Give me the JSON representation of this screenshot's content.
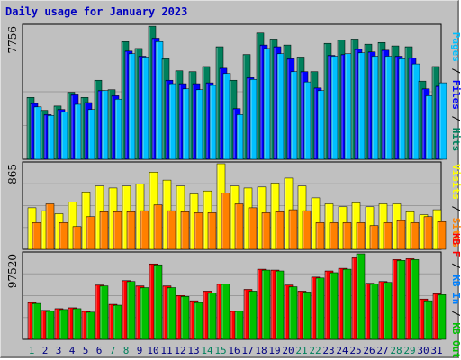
{
  "title": "Daily usage for January 2023",
  "chart_data": [
    {
      "type": "bar",
      "name": "pages-files-hits",
      "max_label": "7756",
      "ylim": [
        0,
        7756
      ],
      "grid": true,
      "legend_parts": [
        "Pages",
        " / ",
        "Files",
        " / ",
        "Hits"
      ],
      "legend_colors": [
        "#00c0ff",
        "#000000",
        "#0000ff",
        "#000000",
        "#00805c"
      ],
      "categories": [
        "1",
        "2",
        "3",
        "4",
        "5",
        "6",
        "7",
        "8",
        "9",
        "10",
        "11",
        "12",
        "13",
        "14",
        "15",
        "16",
        "17",
        "18",
        "19",
        "20",
        "21",
        "22",
        "23",
        "24",
        "25",
        "26",
        "27",
        "28",
        "29",
        "30",
        "31"
      ],
      "series": [
        {
          "name": "Hits",
          "color": "#00805c",
          "values": [
            3600,
            2850,
            3100,
            3900,
            3600,
            4600,
            4050,
            6850,
            6450,
            7750,
            5850,
            5150,
            5100,
            5400,
            6550,
            4600,
            6100,
            7350,
            7000,
            6650,
            5950,
            5100,
            6750,
            6950,
            7000,
            6700,
            6800,
            6600,
            6550,
            4550,
            5400
          ]
        },
        {
          "name": "Files",
          "color": "#0000ff",
          "values": [
            3250,
            2600,
            2900,
            3750,
            3300,
            4000,
            3700,
            6300,
            6000,
            7050,
            4600,
            4400,
            4400,
            4450,
            5300,
            2950,
            4750,
            6650,
            6550,
            5850,
            5100,
            4150,
            6050,
            6100,
            6400,
            6250,
            6350,
            6000,
            5900,
            4100,
            4250
          ]
        },
        {
          "name": "Pages",
          "color": "#00c0ff",
          "values": [
            3050,
            2550,
            2750,
            3200,
            2900,
            4000,
            3500,
            6150,
            5950,
            6850,
            4400,
            4100,
            4050,
            4300,
            5000,
            2600,
            4650,
            6450,
            6150,
            5100,
            4500,
            4000,
            6000,
            6150,
            6200,
            6000,
            6000,
            5850,
            5550,
            3700,
            4450
          ]
        }
      ]
    },
    {
      "type": "bar",
      "name": "visits-sites",
      "max_label": "865",
      "ylim": [
        0,
        865
      ],
      "grid": true,
      "legend_parts": [
        "Visits",
        " / ",
        "Sites"
      ],
      "legend_colors": [
        "#ffff00",
        "#000000",
        "#ff8000"
      ],
      "categories": [
        "1",
        "2",
        "3",
        "4",
        "5",
        "6",
        "7",
        "8",
        "9",
        "10",
        "11",
        "12",
        "13",
        "14",
        "15",
        "16",
        "17",
        "18",
        "19",
        "20",
        "21",
        "22",
        "23",
        "24",
        "25",
        "26",
        "27",
        "28",
        "29",
        "30",
        "31"
      ],
      "series": [
        {
          "name": "Visits",
          "color": "#ffff00",
          "values": [
            420,
            390,
            360,
            480,
            580,
            640,
            620,
            640,
            660,
            780,
            700,
            640,
            560,
            590,
            865,
            640,
            620,
            630,
            670,
            720,
            640,
            520,
            460,
            430,
            470,
            430,
            460,
            460,
            380,
            350,
            400
          ]
        },
        {
          "name": "Sites",
          "color": "#ff8000",
          "values": [
            270,
            460,
            270,
            230,
            330,
            380,
            380,
            380,
            390,
            450,
            390,
            380,
            370,
            370,
            570,
            460,
            420,
            370,
            380,
            400,
            390,
            270,
            270,
            270,
            270,
            240,
            270,
            290,
            270,
            330,
            280
          ]
        }
      ]
    },
    {
      "type": "bar",
      "name": "kbytes",
      "max_label": "97520",
      "ylim": [
        0,
        97520
      ],
      "grid": true,
      "legend_parts": [
        "KB F",
        " / ",
        "KB In",
        " / ",
        "KB Out"
      ],
      "legend_colors": [
        "#ff0000",
        "#000000",
        "#0080ff",
        "#000000",
        "#00c000"
      ],
      "categories": [
        "1",
        "2",
        "3",
        "4",
        "5",
        "6",
        "7",
        "8",
        "9",
        "10",
        "11",
        "12",
        "13",
        "14",
        "15",
        "16",
        "17",
        "18",
        "19",
        "20",
        "21",
        "22",
        "23",
        "24",
        "25",
        "26",
        "27",
        "28",
        "29",
        "30",
        "31"
      ],
      "series": [
        {
          "name": "KB F",
          "color": "#ff0000",
          "values": [
            42000,
            33000,
            35000,
            36000,
            32000,
            62000,
            40000,
            67000,
            61000,
            86000,
            61000,
            50000,
            44000,
            55000,
            63000,
            32000,
            57000,
            80000,
            79000,
            62000,
            55000,
            71000,
            78000,
            81000,
            93000,
            64000,
            66000,
            91000,
            92000,
            46000,
            52000
          ]
        },
        {
          "name": "KB Out",
          "color": "#00c000",
          "values": [
            41000,
            32000,
            34000,
            35000,
            31000,
            61000,
            39000,
            66000,
            59000,
            85000,
            59000,
            49000,
            42000,
            53000,
            63000,
            32000,
            55000,
            79000,
            78000,
            60000,
            54000,
            70000,
            76000,
            80000,
            97520,
            63000,
            65000,
            90000,
            91000,
            44000,
            51000
          ]
        }
      ]
    }
  ],
  "day_labels": {
    "weekend_days": [
      "1",
      "7",
      "8",
      "14",
      "15",
      "21",
      "22",
      "28",
      "29"
    ],
    "weekend_color": "#00805c",
    "weekday_color": "#000080"
  }
}
